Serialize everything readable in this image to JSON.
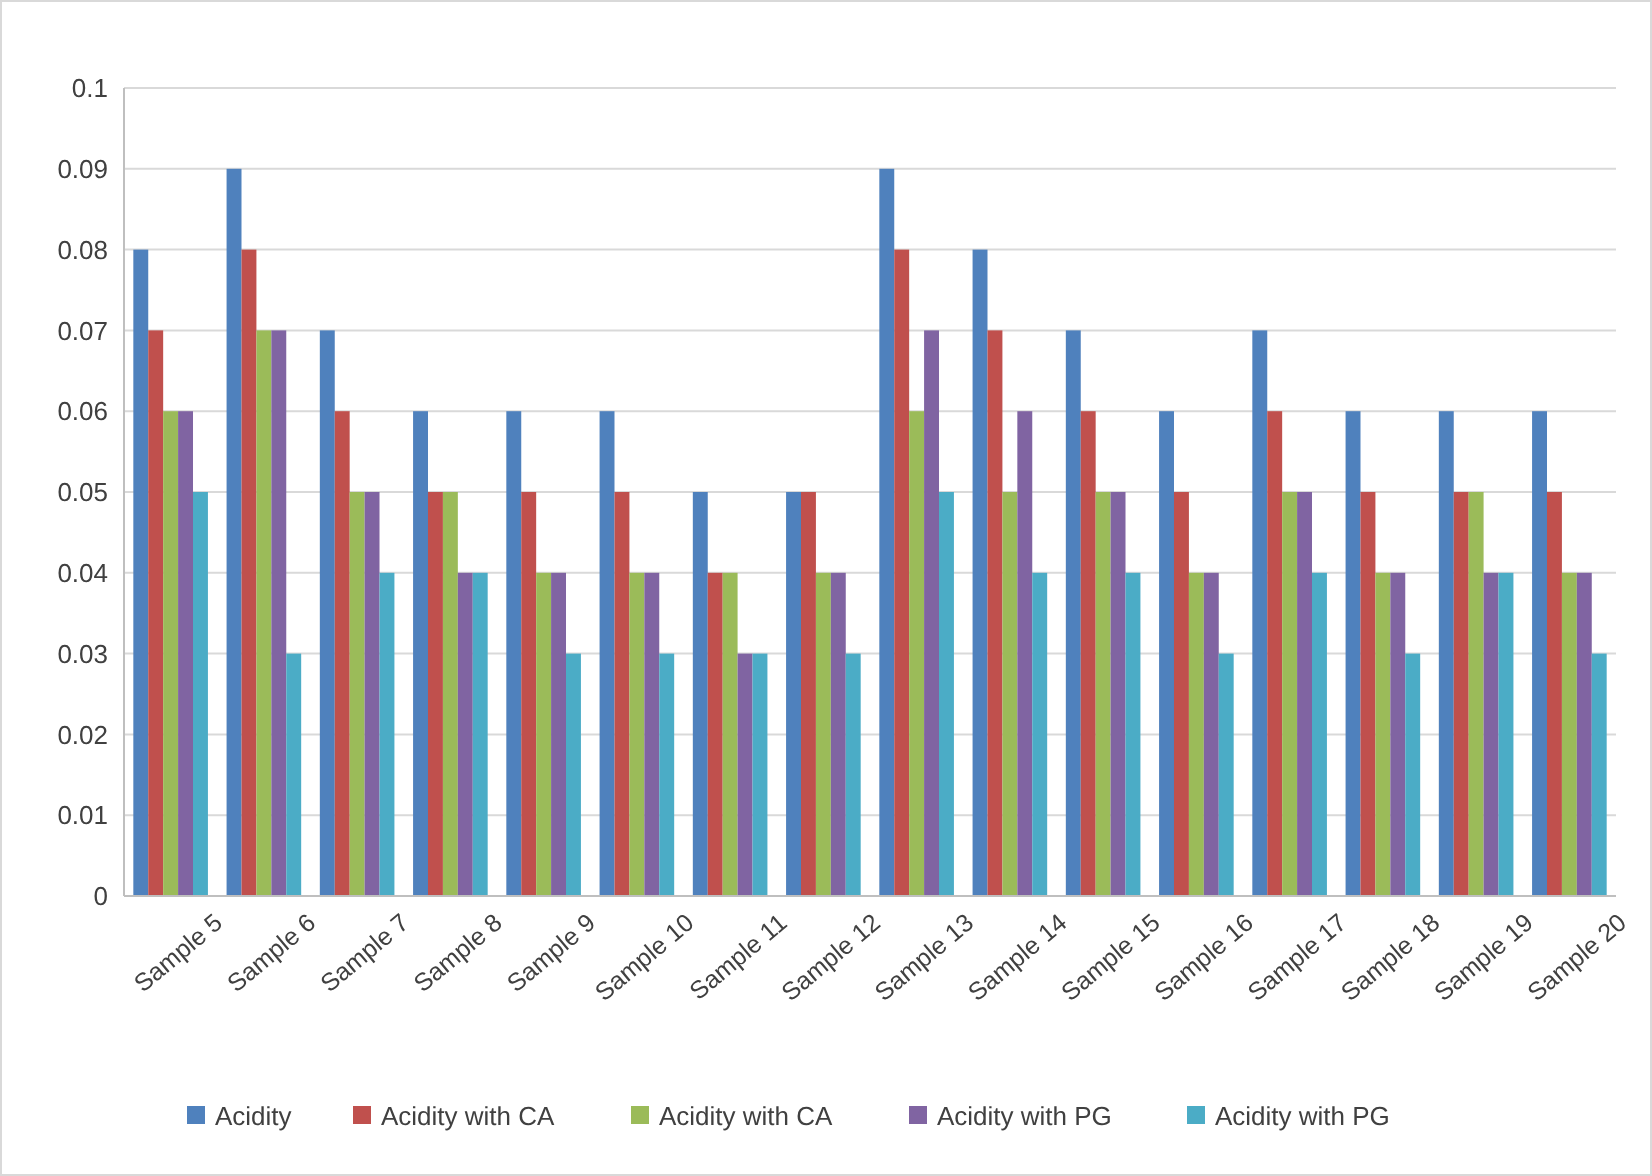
{
  "chart_data": {
    "type": "bar",
    "categories": [
      "Sample 5",
      "Sample 6",
      "Sample 7",
      "Sample 8",
      "Sample 9",
      "Sample 10",
      "Sample 11",
      "Sample 12",
      "Sample 13",
      "Sample 14",
      "Sample 15",
      "Sample 16",
      "Sample 17",
      "Sample 18",
      "Sample 19",
      "Sample 20"
    ],
    "series": [
      {
        "name": "Acidity",
        "color": "#4f81bd",
        "values": [
          0.08,
          0.09,
          0.07,
          0.06,
          0.06,
          0.06,
          0.05,
          0.05,
          0.09,
          0.08,
          0.07,
          0.06,
          0.07,
          0.06,
          0.06,
          0.06
        ]
      },
      {
        "name": "Acidity with CA",
        "color": "#c0504d",
        "values": [
          0.07,
          0.08,
          0.06,
          0.05,
          0.05,
          0.05,
          0.04,
          0.05,
          0.08,
          0.07,
          0.06,
          0.05,
          0.06,
          0.05,
          0.05,
          0.05
        ]
      },
      {
        "name": "Acidity with CA",
        "color": "#9bbb59",
        "values": [
          0.06,
          0.07,
          0.05,
          0.05,
          0.04,
          0.04,
          0.04,
          0.04,
          0.06,
          0.05,
          0.05,
          0.04,
          0.05,
          0.04,
          0.05,
          0.04
        ]
      },
      {
        "name": "Acidity with PG",
        "color": "#8064a2",
        "values": [
          0.06,
          0.07,
          0.05,
          0.04,
          0.04,
          0.04,
          0.03,
          0.04,
          0.07,
          0.06,
          0.05,
          0.04,
          0.05,
          0.04,
          0.04,
          0.04
        ]
      },
      {
        "name": "Acidity with PG",
        "color": "#4bacc6",
        "values": [
          0.05,
          0.03,
          0.04,
          0.04,
          0.03,
          0.03,
          0.03,
          0.03,
          0.05,
          0.04,
          0.04,
          0.03,
          0.04,
          0.03,
          0.04,
          0.03
        ]
      }
    ],
    "ylim": [
      0,
      0.1
    ],
    "yticks": [
      0,
      0.01,
      0.02,
      0.03,
      0.04,
      0.05,
      0.06,
      0.07,
      0.08,
      0.09,
      0.1
    ],
    "grid": "y",
    "legend": "bottom"
  }
}
